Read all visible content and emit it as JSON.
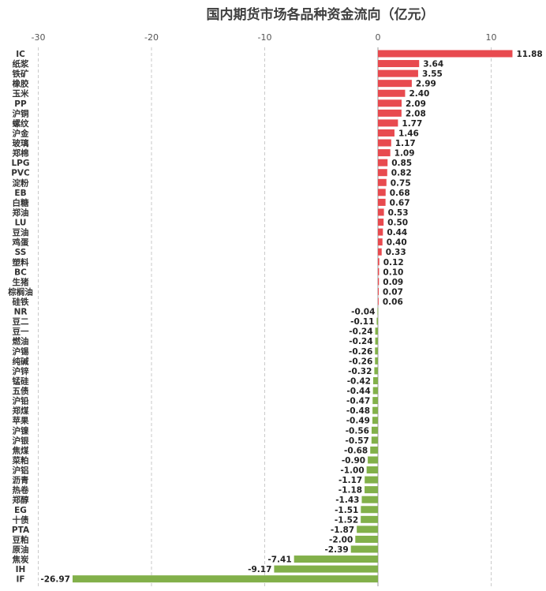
{
  "chart_data": {
    "type": "bar",
    "orientation": "horizontal",
    "title": "国内期货市场各品种资金流向（亿元）",
    "xlim": [
      -30,
      12.5
    ],
    "xticks": [
      -30,
      -20,
      -10,
      0,
      10
    ],
    "grid": "vertical-dashed",
    "colors": {
      "positive": "#e84a4f",
      "negative": "#82b04a"
    },
    "categories": [
      "IC",
      "纸浆",
      "铁矿",
      "橡胶",
      "玉米",
      "PP",
      "沪铜",
      "螺纹",
      "沪金",
      "玻璃",
      "郑棉",
      "LPG",
      "PVC",
      "淀粉",
      "EB",
      "白糖",
      "郑油",
      "LU",
      "豆油",
      "鸡蛋",
      "SS",
      "塑料",
      "BC",
      "生猪",
      "棕榈油",
      "硅铁",
      "NR",
      "豆二",
      "豆一",
      "燃油",
      "沪锡",
      "纯碱",
      "沪锌",
      "锰硅",
      "五债",
      "沪铅",
      "郑煤",
      "苹果",
      "沪镍",
      "沪银",
      "焦煤",
      "菜粕",
      "沪铝",
      "沥青",
      "热卷",
      "郑醇",
      "EG",
      "十债",
      "PTA",
      "豆粕",
      "原油",
      "焦炭",
      "IH",
      "IF"
    ],
    "values": [
      11.88,
      3.64,
      3.55,
      2.99,
      2.4,
      2.09,
      2.08,
      1.77,
      1.46,
      1.17,
      1.09,
      0.85,
      0.82,
      0.75,
      0.68,
      0.67,
      0.53,
      0.5,
      0.44,
      0.4,
      0.33,
      0.12,
      0.1,
      0.09,
      0.07,
      0.06,
      -0.04,
      -0.11,
      -0.24,
      -0.24,
      -0.26,
      -0.26,
      -0.32,
      -0.42,
      -0.44,
      -0.47,
      -0.48,
      -0.49,
      -0.56,
      -0.57,
      -0.68,
      -0.9,
      -1.0,
      -1.17,
      -1.18,
      -1.43,
      -1.51,
      -1.52,
      -1.87,
      -2.0,
      -2.39,
      -7.41,
      -9.17,
      -26.97
    ],
    "value_labels": [
      "11.88",
      "3.64",
      "3.55",
      "2.99",
      "2.40",
      "2.09",
      "2.08",
      "1.77",
      "1.46",
      "1.17",
      "1.09",
      "0.85",
      "0.82",
      "0.75",
      "0.68",
      "0.67",
      "0.53",
      "0.50",
      "0.44",
      "0.40",
      "0.33",
      "0.12",
      "0.10",
      "0.09",
      "0.07",
      "0.06",
      "-0.04",
      "-0.11",
      "-0.24",
      "-0.24",
      "-0.26",
      "-0.26",
      "-0.32",
      "-0.42",
      "-0.44",
      "-0.47",
      "-0.48",
      "-0.49",
      "-0.56",
      "-0.57",
      "-0.68",
      "-0.90",
      "-1.00",
      "-1.17",
      "-1.18",
      "-1.43",
      "-1.51",
      "-1.52",
      "-1.87",
      "-2.00",
      "-2.39",
      "-7.41",
      "-9.17",
      "-26.97"
    ],
    "tick_labels": [
      "-30",
      "-20",
      "-10",
      "0",
      "10"
    ]
  }
}
